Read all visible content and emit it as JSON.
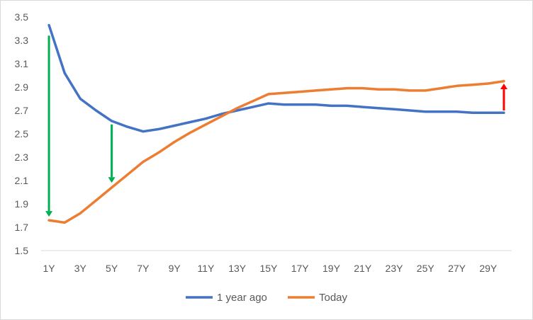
{
  "chart_data": {
    "type": "line",
    "title": "",
    "xlabel": "",
    "ylabel": "",
    "categories": [
      "1Y",
      "2Y",
      "3Y",
      "4Y",
      "5Y",
      "6Y",
      "7Y",
      "8Y",
      "9Y",
      "10Y",
      "11Y",
      "12Y",
      "13Y",
      "14Y",
      "15Y",
      "16Y",
      "17Y",
      "18Y",
      "19Y",
      "20Y",
      "21Y",
      "22Y",
      "23Y",
      "24Y",
      "25Y",
      "26Y",
      "27Y",
      "28Y",
      "29Y",
      "30Y"
    ],
    "tick_labels": [
      "1Y",
      "3Y",
      "5Y",
      "7Y",
      "9Y",
      "11Y",
      "13Y",
      "15Y",
      "17Y",
      "19Y",
      "21Y",
      "23Y",
      "25Y",
      "27Y",
      "29Y"
    ],
    "yticks": [
      "1.5",
      "1.7",
      "1.9",
      "2.1",
      "2.3",
      "2.5",
      "2.7",
      "2.9",
      "3.1",
      "3.3",
      "3.5"
    ],
    "ylim": [
      1.5,
      3.5
    ],
    "grid": false,
    "legend_position": "bottom",
    "series": [
      {
        "name": "1 year ago",
        "color": "#4472c4",
        "values": [
          3.43,
          3.02,
          2.8,
          2.7,
          2.61,
          2.56,
          2.52,
          2.54,
          2.57,
          2.6,
          2.63,
          2.67,
          2.7,
          2.73,
          2.76,
          2.75,
          2.75,
          2.75,
          2.74,
          2.74,
          2.73,
          2.72,
          2.71,
          2.7,
          2.69,
          2.69,
          2.69,
          2.68,
          2.68,
          2.68
        ]
      },
      {
        "name": "Today",
        "color": "#ed7d31",
        "values": [
          1.76,
          1.74,
          1.82,
          1.93,
          2.04,
          2.15,
          2.26,
          2.34,
          2.43,
          2.51,
          2.58,
          2.65,
          2.72,
          2.78,
          2.84,
          2.85,
          2.86,
          2.87,
          2.88,
          2.89,
          2.89,
          2.88,
          2.88,
          2.87,
          2.87,
          2.89,
          2.91,
          2.92,
          2.93,
          2.95
        ]
      }
    ],
    "arrows": [
      {
        "name": "arrow-1y-down",
        "color": "#00b050",
        "category": "1Y",
        "from": 3.34,
        "to": 1.79
      },
      {
        "name": "arrow-5y-down",
        "color": "#00b050",
        "category": "5Y",
        "from": 2.58,
        "to": 2.08
      },
      {
        "name": "arrow-30y-up",
        "color": "#ff0000",
        "category": "30Y",
        "from": 2.7,
        "to": 2.93
      }
    ]
  }
}
